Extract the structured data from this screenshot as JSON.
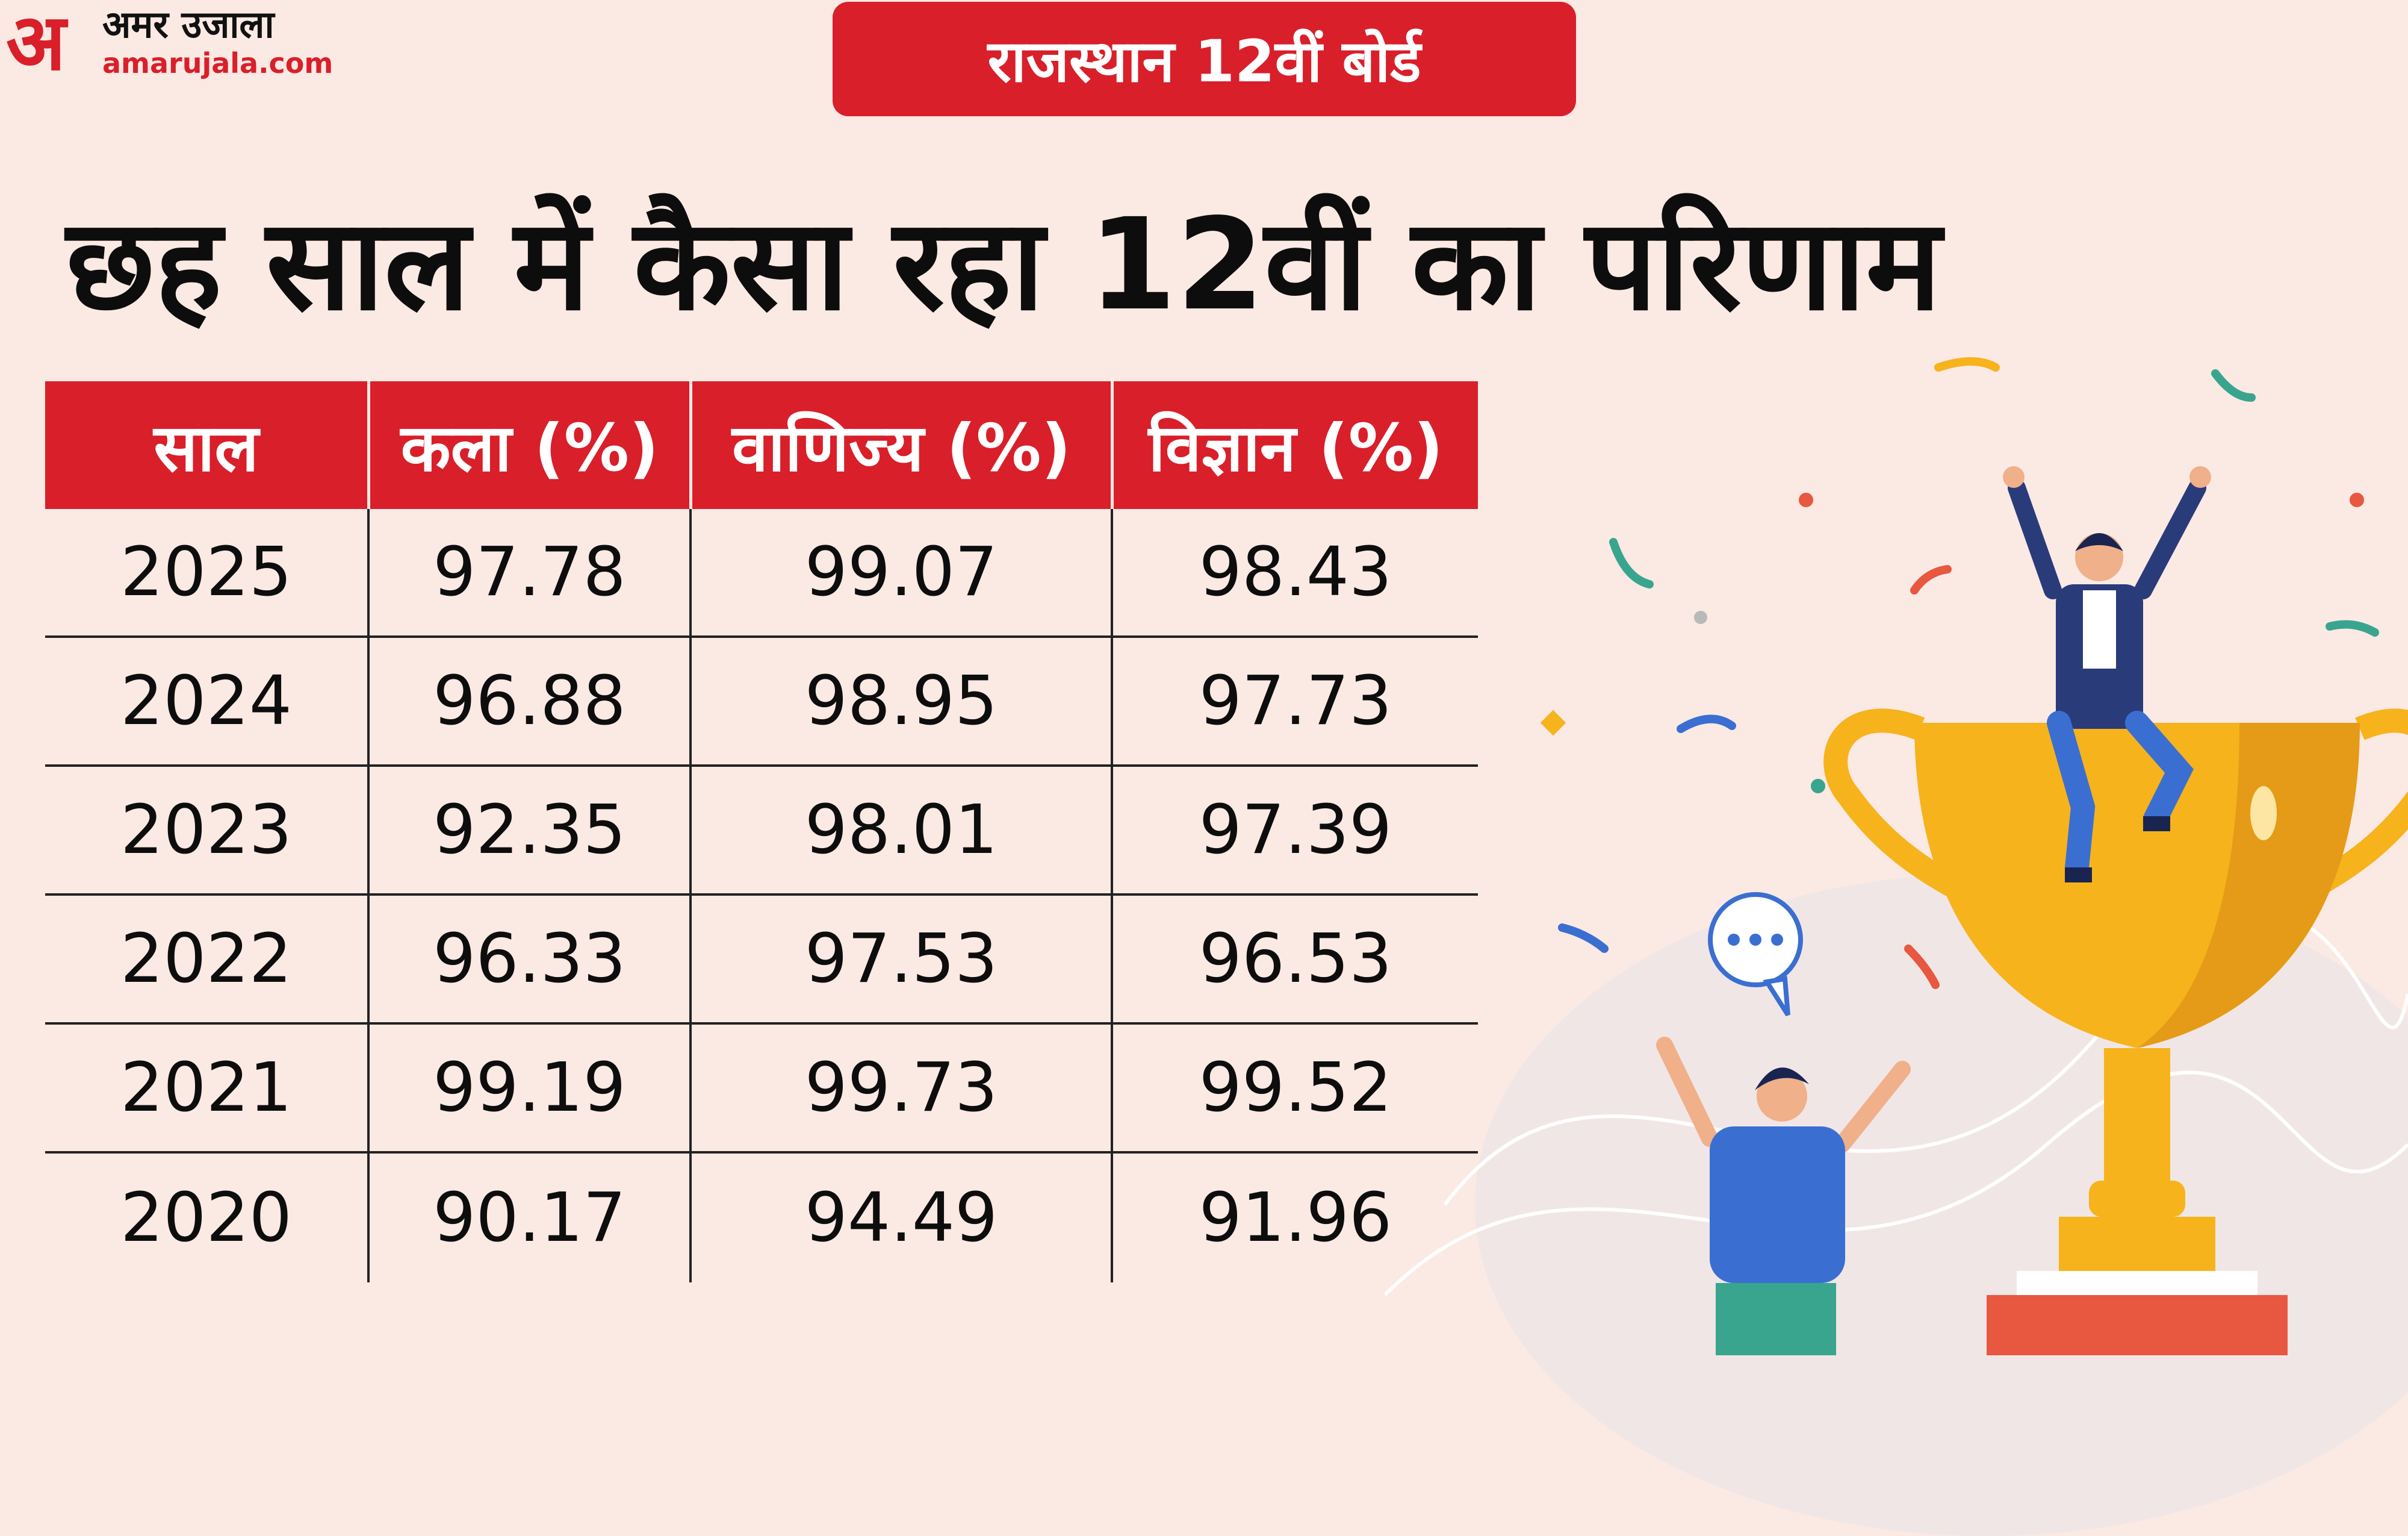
{
  "brand": {
    "mark": "अ",
    "name_hindi": "अमर उजाला",
    "url": "amarujala.com"
  },
  "badge": "राजस्थान 12वीं बोर्ड",
  "headline": "छह साल में कैसा रहा 12वीं का परिणाम",
  "table": {
    "headers": [
      "साल",
      "कला (%)",
      "वाणिज्य (%)",
      "विज्ञान (%)"
    ],
    "rows": [
      [
        "2025",
        "97.78",
        "99.07",
        "98.43"
      ],
      [
        "2024",
        "96.88",
        "98.95",
        "97.73"
      ],
      [
        "2023",
        "92.35",
        "98.01",
        "97.39"
      ],
      [
        "2022",
        "96.33",
        "97.53",
        "96.53"
      ],
      [
        "2021",
        "99.19",
        "99.73",
        "99.52"
      ],
      [
        "2020",
        "90.17",
        "94.49",
        "91.96"
      ]
    ]
  },
  "colors": {
    "accent": "#d91f2a",
    "background": "#fbe9e4",
    "trophy": "#f6b31c"
  },
  "illustration": {
    "icons": [
      "trophy-icon",
      "celebrating-person-icon",
      "cheering-person-icon",
      "speech-bubble-icon",
      "confetti-icon"
    ]
  }
}
